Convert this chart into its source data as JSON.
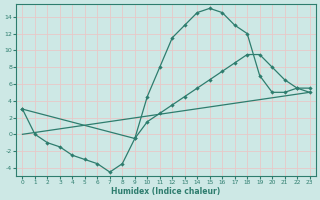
{
  "xlabel": "Humidex (Indice chaleur)",
  "ylabel": "",
  "background_color": "#cde8e5",
  "grid_color": "#e8c8c8",
  "line_color": "#2e7d6e",
  "xlim": [
    -0.5,
    23.5
  ],
  "ylim": [
    -5,
    15.5
  ],
  "xticks": [
    0,
    1,
    2,
    3,
    4,
    5,
    6,
    7,
    8,
    9,
    10,
    11,
    12,
    13,
    14,
    15,
    16,
    17,
    18,
    19,
    20,
    21,
    22,
    23
  ],
  "yticks": [
    -4,
    -2,
    0,
    2,
    4,
    6,
    8,
    10,
    12,
    14
  ],
  "line1_x": [
    0,
    1,
    2,
    3,
    4,
    5,
    6,
    7,
    8,
    9,
    10,
    11,
    12,
    13,
    14,
    15,
    16,
    17,
    18,
    19,
    20,
    21,
    22,
    23
  ],
  "line1_y": [
    3,
    0,
    -1,
    -1.5,
    -2.5,
    -3,
    -3.5,
    -4.5,
    -3.5,
    -0.5,
    4.5,
    8,
    11.5,
    13,
    14.5,
    15,
    14.5,
    13,
    12,
    7,
    5,
    5,
    5.5,
    5
  ],
  "line2_x": [
    0,
    9,
    10,
    11,
    12,
    13,
    14,
    15,
    16,
    17,
    18,
    19,
    20,
    21,
    22,
    23
  ],
  "line2_y": [
    3,
    -0.5,
    1.5,
    2.5,
    3.5,
    4.5,
    5.5,
    6.5,
    7.5,
    8.5,
    9.5,
    9.5,
    8.0,
    6.5,
    5.5,
    5.5
  ],
  "line3_x": [
    0,
    23
  ],
  "line3_y": [
    0,
    5
  ]
}
